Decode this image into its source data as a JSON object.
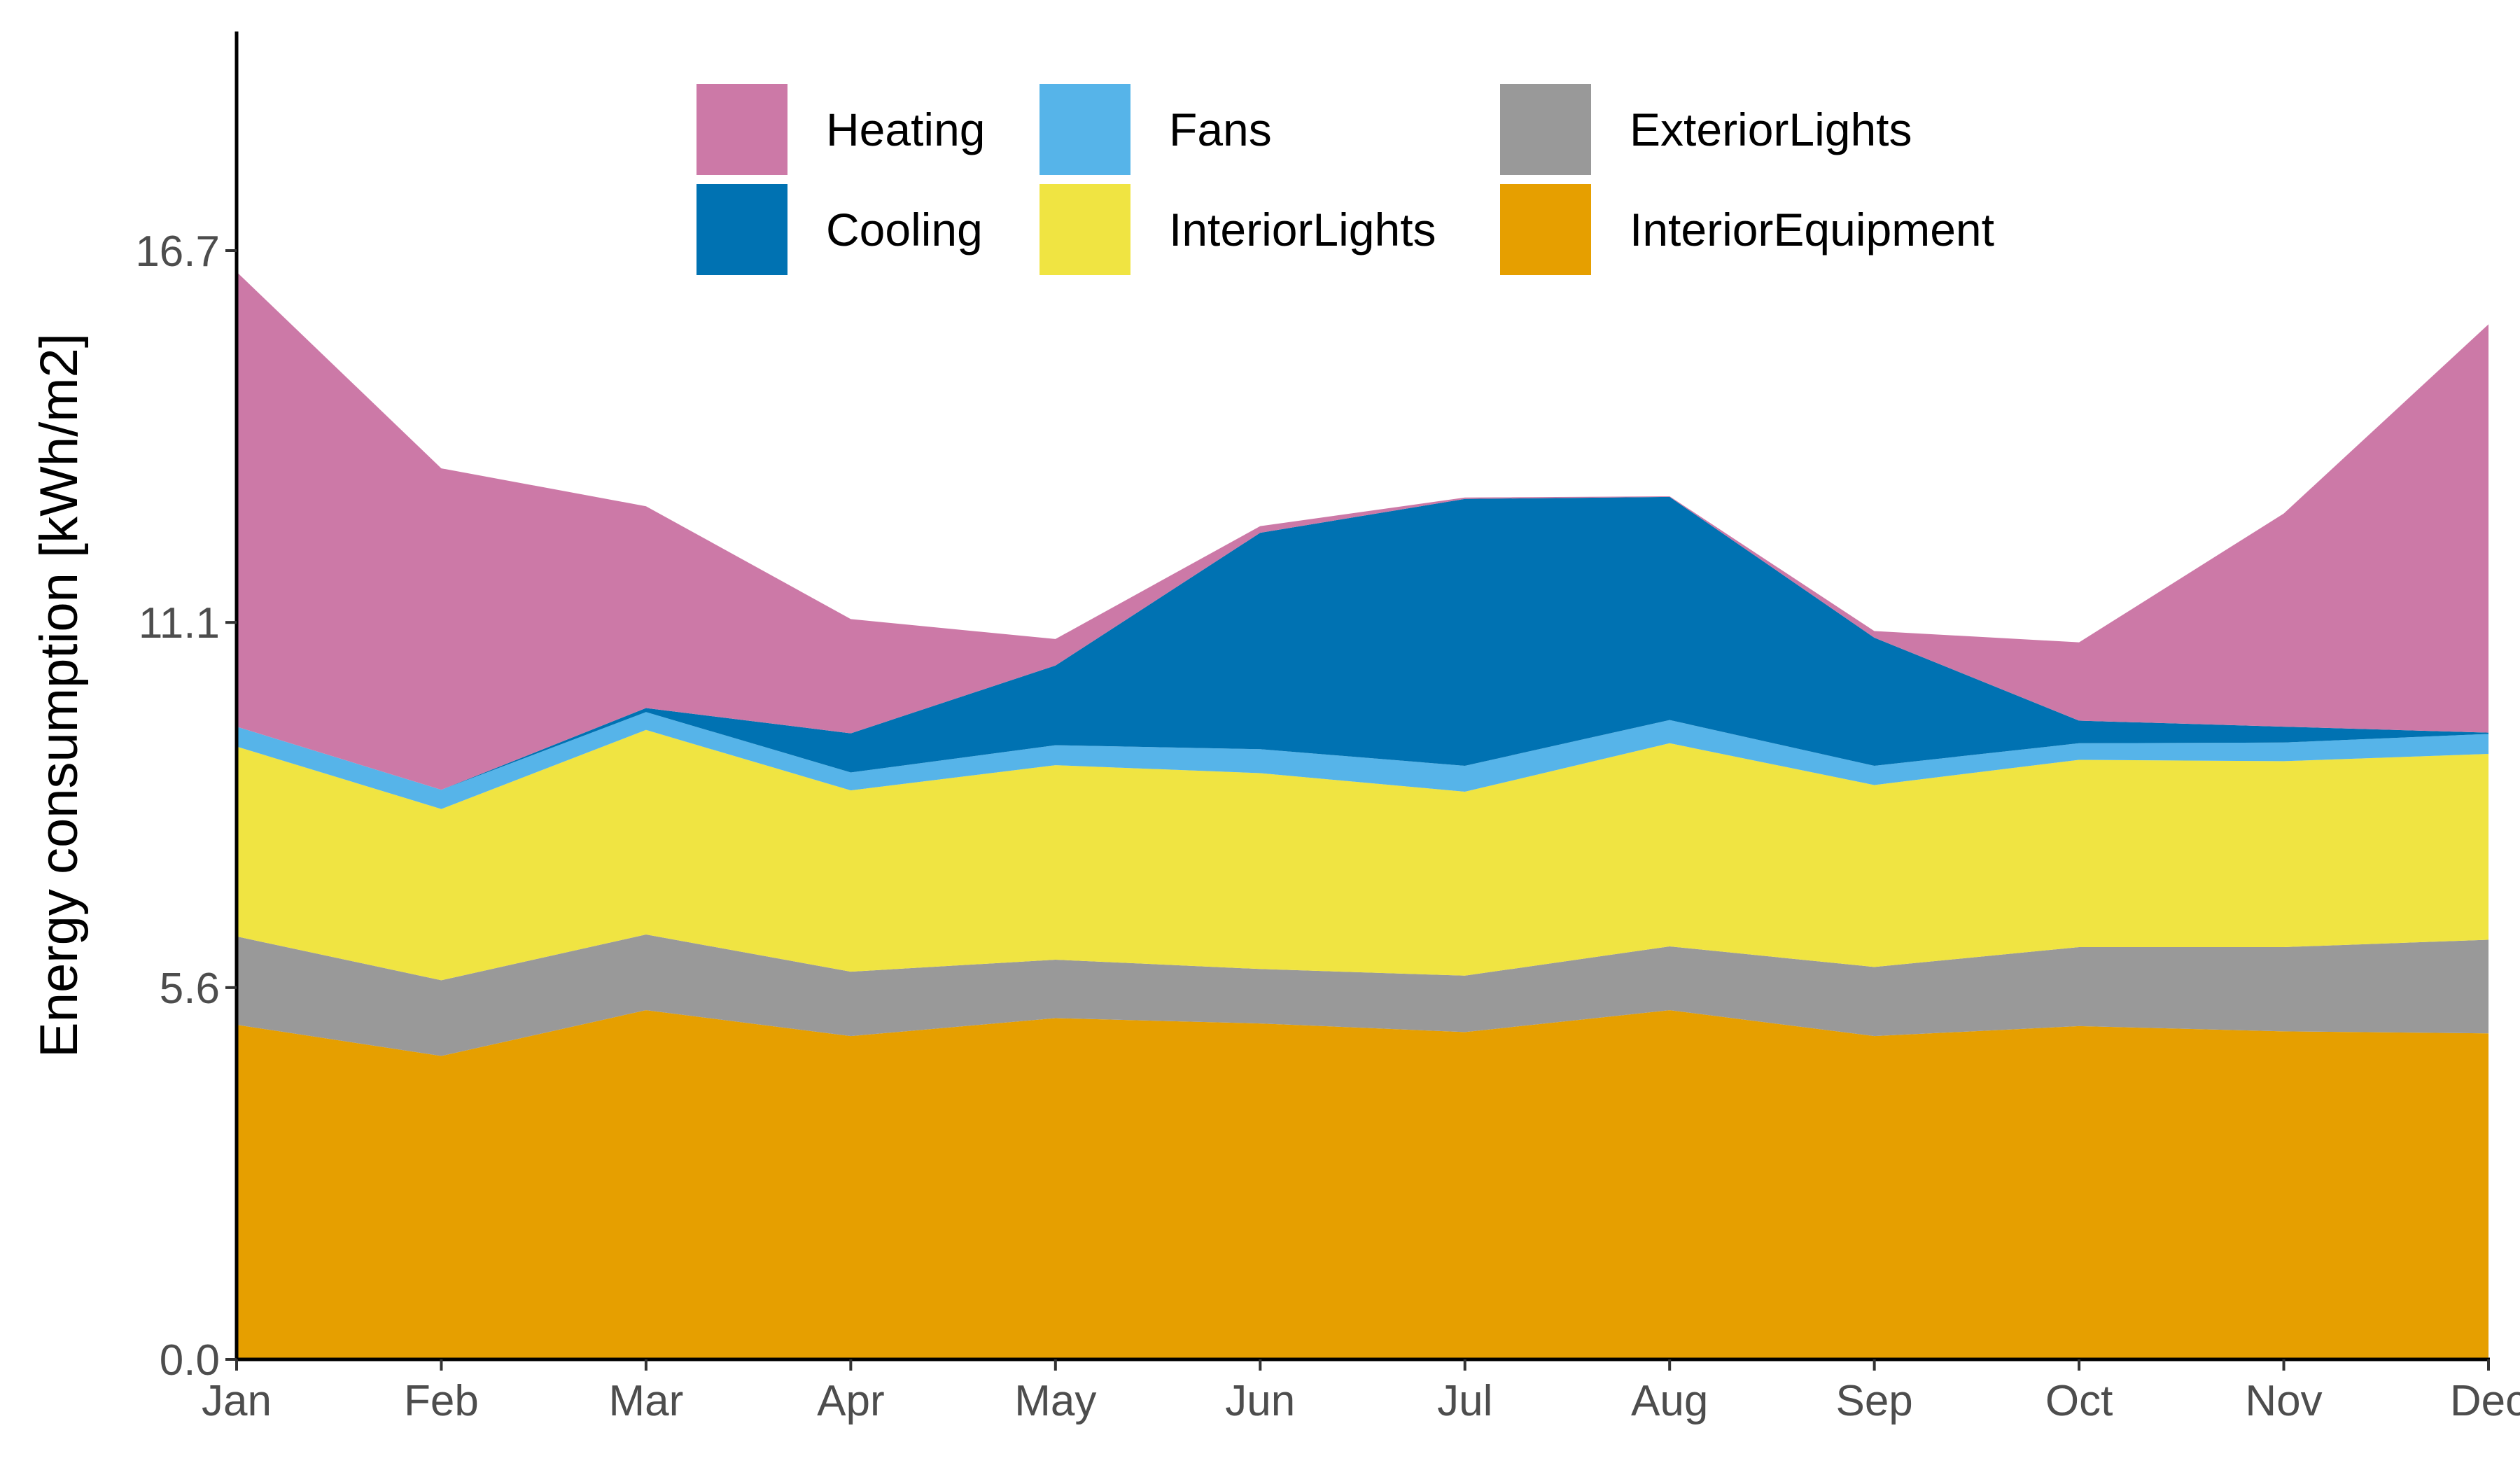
{
  "chart_data": {
    "type": "area",
    "stacked": true,
    "ylabel": "Energy consumption [kWh/m2]",
    "xlabel": "",
    "categories": [
      "Jan",
      "Feb",
      "Mar",
      "Apr",
      "May",
      "Jun",
      "Jul",
      "Aug",
      "Sep",
      "Oct",
      "Nov",
      "Dec"
    ],
    "yticks": [
      0.0,
      5.6,
      11.1,
      16.7
    ],
    "ytick_labels": [
      "0.0",
      "5.6",
      "11.1",
      "16.7"
    ],
    "ylim": [
      0,
      20
    ],
    "grid": false,
    "legend_position": "top",
    "series": [
      {
        "name": "InteriorEquipment",
        "color": "#E69F00",
        "values": [
          5.04,
          4.57,
          5.26,
          4.87,
          5.14,
          5.06,
          4.93,
          5.26,
          4.87,
          5.02,
          4.94,
          4.91
        ]
      },
      {
        "name": "ExteriorLights",
        "color": "#999999",
        "values": [
          1.33,
          1.14,
          1.14,
          0.97,
          0.88,
          0.82,
          0.85,
          0.96,
          1.04,
          1.19,
          1.27,
          1.41
        ]
      },
      {
        "name": "InteriorLights",
        "color": "#F0E442",
        "values": [
          2.86,
          2.58,
          3.08,
          2.73,
          2.93,
          2.95,
          2.77,
          3.06,
          2.74,
          2.82,
          2.8,
          2.8
        ]
      },
      {
        "name": "Fans",
        "color": "#56B4E9",
        "values": [
          0.3,
          0.29,
          0.27,
          0.27,
          0.3,
          0.36,
          0.39,
          0.35,
          0.29,
          0.25,
          0.28,
          0.3
        ]
      },
      {
        "name": "Cooling",
        "color": "#0072B2",
        "values": [
          0.0,
          0.0,
          0.06,
          0.59,
          1.2,
          3.26,
          4.02,
          3.36,
          1.93,
          0.34,
          0.24,
          0.02
        ]
      },
      {
        "name": "Heating",
        "color": "#CC79A7",
        "values": [
          6.85,
          4.84,
          3.04,
          1.72,
          0.4,
          0.1,
          0.02,
          0.01,
          0.1,
          1.18,
          3.21,
          6.15
        ]
      }
    ],
    "legend_order": [
      "Heating",
      "Cooling",
      "Fans",
      "InteriorLights",
      "ExteriorLights",
      "InteriorEquipment"
    ]
  }
}
